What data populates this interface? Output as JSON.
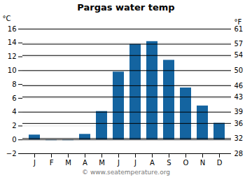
{
  "chart_data": {
    "type": "bar",
    "title": "Pargas water temp",
    "categories": [
      "J",
      "F",
      "M",
      "A",
      "M",
      "J",
      "J",
      "A",
      "S",
      "O",
      "N",
      "D"
    ],
    "values": [
      0.7,
      -0.1,
      -0.1,
      0.8,
      4.1,
      9.8,
      13.8,
      14.2,
      11.5,
      7.5,
      4.9,
      2.4
    ],
    "color": "#1464a0",
    "ylabel": "°C",
    "y2label": "°F",
    "ylim": [
      -2,
      16
    ],
    "yticks": [
      -2,
      0,
      2,
      4,
      6,
      8,
      10,
      12,
      14,
      16
    ],
    "y2lim": [
      28,
      61
    ],
    "y2ticks": [
      28,
      32,
      36,
      39,
      43,
      46,
      50,
      54,
      57,
      61
    ],
    "grid": true,
    "annotations": [
      "© www.seatemperature.org"
    ]
  }
}
